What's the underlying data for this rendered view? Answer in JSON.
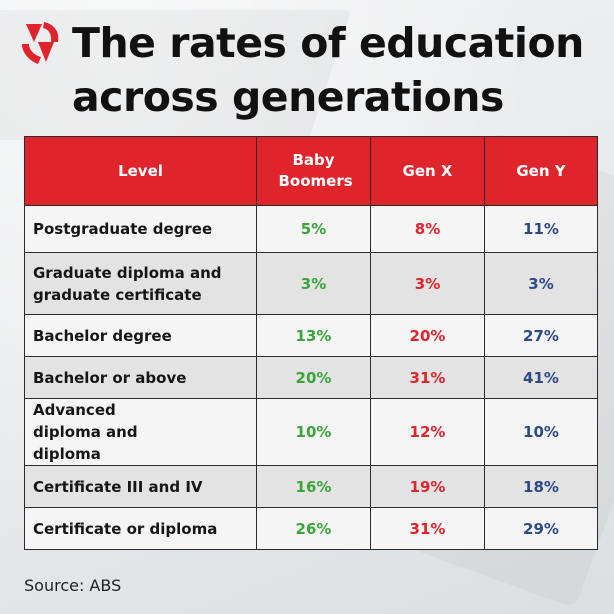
{
  "title": "The rates of education across generations",
  "source": "Source: ABS",
  "colors": {
    "header_bg": "#e0242c",
    "baby_boomers": "#3aa43a",
    "gen_x": "#e0242c",
    "gen_y": "#2d4a86"
  },
  "icons": {
    "logo": "sbs-logo-icon"
  },
  "chart_data": {
    "type": "table",
    "title": "The rates of education across generations",
    "columns": [
      "Level",
      "Baby Boomers",
      "Gen X",
      "Gen Y"
    ],
    "rows": [
      {
        "level": "Postgraduate degree",
        "values": [
          "5%",
          "8%",
          "11%"
        ]
      },
      {
        "level": "Graduate diploma and graduate certificate",
        "values": [
          "3%",
          "3%",
          "3%"
        ]
      },
      {
        "level": "Bachelor degree",
        "values": [
          "13%",
          "20%",
          "27%"
        ]
      },
      {
        "level": "Bachelor or above",
        "values": [
          "20%",
          "31%",
          "41%"
        ]
      },
      {
        "level": "Advanced diploma and diploma",
        "values": [
          "10%",
          "12%",
          "10%"
        ]
      },
      {
        "level": "Certificate III and IV",
        "values": [
          "16%",
          "19%",
          "18%"
        ]
      },
      {
        "level": "Certificate or diploma",
        "values": [
          "26%",
          "31%",
          "29%"
        ]
      }
    ]
  }
}
